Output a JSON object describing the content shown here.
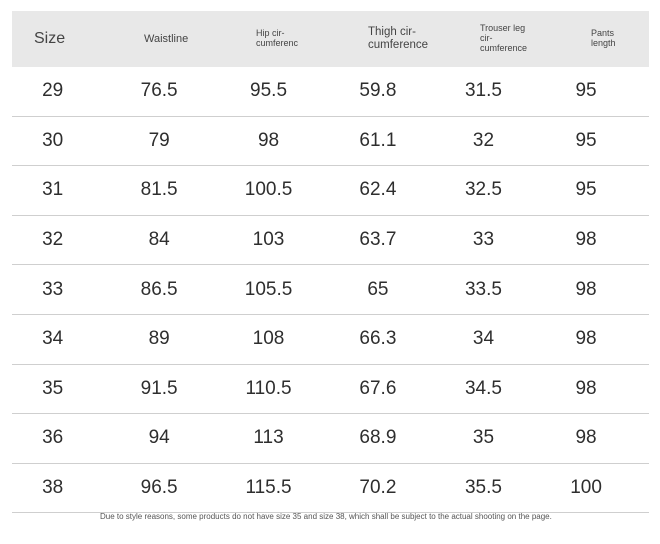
{
  "headers": {
    "size": "Size",
    "waistline": "Waistline",
    "hip": "Hip cir-\ncumferenc",
    "thigh": "Thigh cir-\ncumference",
    "trouser_leg": "Trouser leg cir-\ncumference",
    "pants_length": "Pants\nlength"
  },
  "rows": [
    [
      "29",
      "76.5",
      "95.5",
      "59.8",
      "31.5",
      "95"
    ],
    [
      "30",
      "79",
      "98",
      "61.1",
      "32",
      "95"
    ],
    [
      "31",
      "81.5",
      "100.5",
      "62.4",
      "32.5",
      "95"
    ],
    [
      "32",
      "84",
      "103",
      "63.7",
      "33",
      "98"
    ],
    [
      "33",
      "86.5",
      "105.5",
      "65",
      "33.5",
      "98"
    ],
    [
      "34",
      "89",
      "108",
      "66.3",
      "34",
      "98"
    ],
    [
      "35",
      "91.5",
      "110.5",
      "67.6",
      "34.5",
      "98"
    ],
    [
      "36",
      "94",
      "113",
      "68.9",
      "35",
      "98"
    ],
    [
      "38",
      "96.5",
      "115.5",
      "70.2",
      "35.5",
      "100"
    ]
  ],
  "note": "Due to style reasons, some products do not have size 35 and size 38, which shall be subject to the actual shooting on the page."
}
